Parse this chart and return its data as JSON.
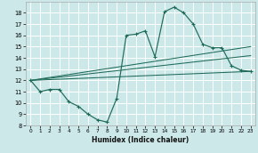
{
  "xlabel": "Humidex (Indice chaleur)",
  "bg_color": "#cce8e8",
  "grid_color": "#ffffff",
  "line_color": "#1f6b5a",
  "xlim": [
    -0.5,
    23.5
  ],
  "ylim": [
    8,
    19
  ],
  "xticks": [
    0,
    1,
    2,
    3,
    4,
    5,
    6,
    7,
    8,
    9,
    10,
    11,
    12,
    13,
    14,
    15,
    16,
    17,
    18,
    19,
    20,
    21,
    22,
    23
  ],
  "yticks": [
    8,
    9,
    10,
    11,
    12,
    13,
    14,
    15,
    16,
    17,
    18
  ],
  "main_curve_x": [
    0,
    1,
    2,
    3,
    4,
    5,
    6,
    7,
    8,
    9,
    10,
    11,
    12,
    13,
    14,
    15,
    16,
    17,
    18,
    19,
    20,
    21,
    22,
    23
  ],
  "main_curve_y": [
    12,
    11,
    11.2,
    11.2,
    10.1,
    9.7,
    9.0,
    8.5,
    8.3,
    10.4,
    16.0,
    16.1,
    16.4,
    14.1,
    18.1,
    18.5,
    18.0,
    17.0,
    15.2,
    14.9,
    14.9,
    13.3,
    12.9,
    12.8
  ],
  "straight_lines": [
    {
      "x": [
        0,
        23
      ],
      "y": [
        12,
        12.8
      ]
    },
    {
      "x": [
        0,
        23
      ],
      "y": [
        12,
        14.2
      ]
    },
    {
      "x": [
        0,
        23
      ],
      "y": [
        12,
        15.0
      ]
    }
  ]
}
